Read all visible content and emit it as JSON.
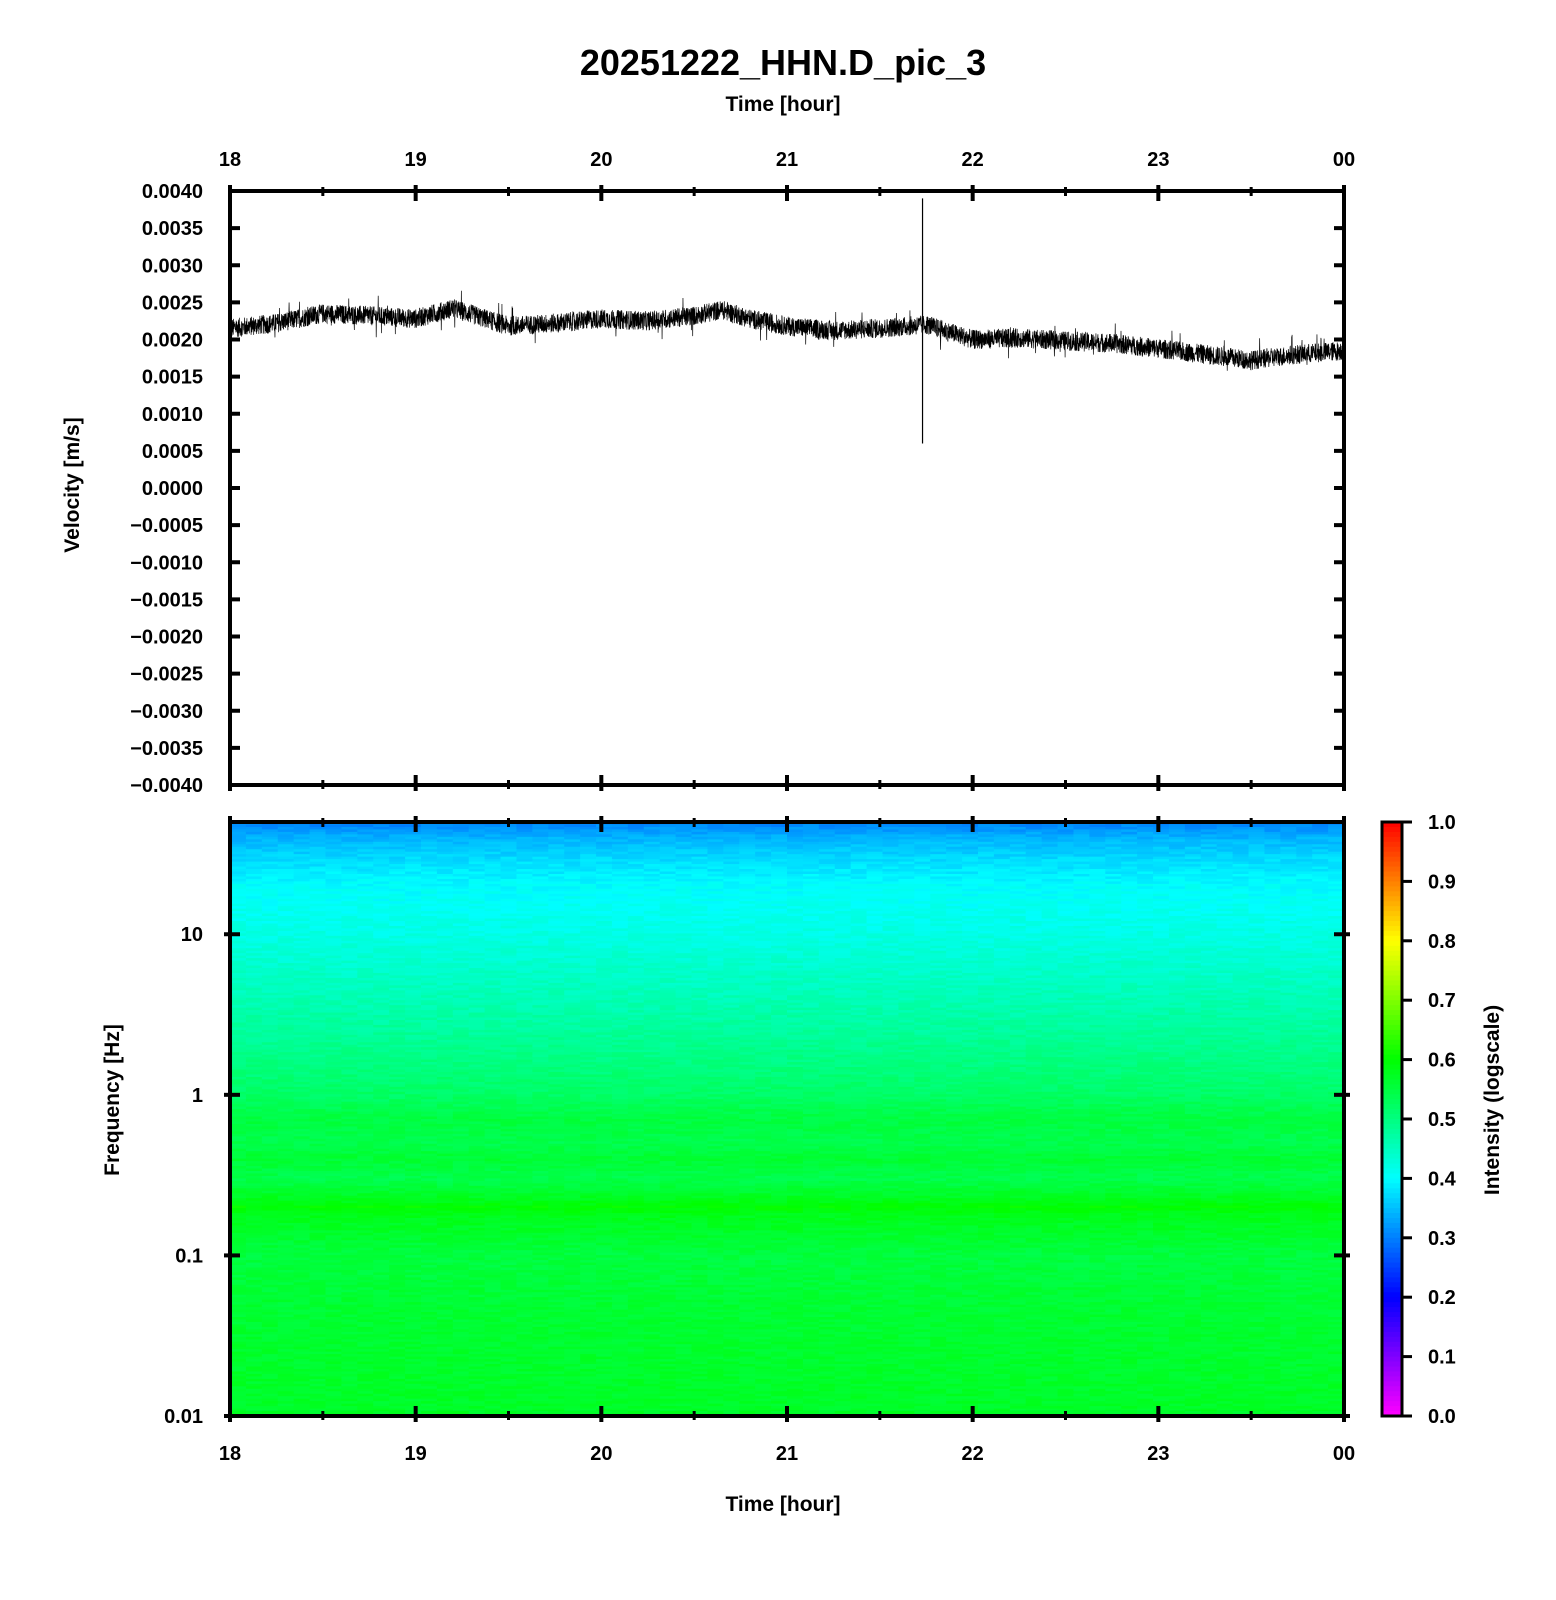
{
  "chart_data": [
    {
      "type": "line",
      "title": "20251222_HHN.D_pic_3",
      "xlabel": "Time [hour]",
      "ylabel": "Velocity [m/s]",
      "x_tick_labels": [
        "18",
        "19",
        "20",
        "21",
        "22",
        "23",
        "00"
      ],
      "y_tick_labels": [
        "0.0040",
        "0.0035",
        "0.0030",
        "0.0025",
        "0.0020",
        "0.0015",
        "0.0010",
        "0.0005",
        "0.0000",
        "−0.0005",
        "−0.0010",
        "−0.0015",
        "−0.0020",
        "−0.0025",
        "−0.0030",
        "−0.0035",
        "−0.0040"
      ],
      "xlim": [
        18,
        24
      ],
      "ylim": [
        -0.004,
        0.004
      ],
      "grid": false,
      "series": [
        {
          "x": [
            18.0,
            18.25,
            18.5,
            18.75,
            19.0,
            19.2,
            19.5,
            19.75,
            20.0,
            20.25,
            20.5,
            20.65,
            20.8,
            21.0,
            21.25,
            21.5,
            21.75,
            22.0,
            22.25,
            22.5,
            22.75,
            23.0,
            23.25,
            23.5,
            23.75,
            24.0
          ],
          "y": [
            0.00215,
            0.00222,
            0.00235,
            0.00232,
            0.00228,
            0.00242,
            0.00218,
            0.00222,
            0.00228,
            0.00225,
            0.00232,
            0.0024,
            0.00228,
            0.00218,
            0.00212,
            0.00215,
            0.0022,
            0.002,
            0.00202,
            0.00198,
            0.00195,
            0.00188,
            0.0018,
            0.00172,
            0.0018,
            0.00185
          ],
          "noise_amplitude": 0.00013,
          "color": "#000000"
        },
        {
          "type": "spike",
          "x": 21.73,
          "y_range": [
            0.0006,
            0.0039
          ],
          "color": "#000000"
        }
      ]
    },
    {
      "type": "heatmap",
      "xlabel": "Time [hour]",
      "ylabel": "Frequency [Hz]",
      "x_tick_labels": [
        "18",
        "19",
        "20",
        "21",
        "22",
        "23",
        "00"
      ],
      "y_tick_labels": [
        "10",
        "1",
        "0.1",
        "0.01"
      ],
      "xlim": [
        18,
        24
      ],
      "ylim": [
        0.01,
        50
      ],
      "y_scale": "log",
      "colorbar": {
        "label": "Intensity (logscale)",
        "range": [
          0.0,
          1.0
        ],
        "tick_labels": [
          "1.0",
          "0.9",
          "0.8",
          "0.7",
          "0.6",
          "0.5",
          "0.4",
          "0.3",
          "0.2",
          "0.1",
          "0.0"
        ],
        "colormap": [
          "#ff00ff",
          "#0000ff",
          "#00ffff",
          "#00ff00",
          "#ffff00",
          "#ff0000"
        ]
      },
      "intensity_profile": {
        "frequency_hz": [
          0.01,
          0.05,
          0.1,
          0.18,
          0.2,
          0.22,
          0.3,
          0.4,
          0.5,
          0.7,
          1,
          3,
          10,
          20,
          30,
          40,
          50
        ],
        "intensity": [
          0.57,
          0.56,
          0.55,
          0.58,
          0.6,
          0.58,
          0.54,
          0.56,
          0.54,
          0.55,
          0.52,
          0.47,
          0.42,
          0.4,
          0.37,
          0.34,
          0.3
        ]
      }
    }
  ]
}
